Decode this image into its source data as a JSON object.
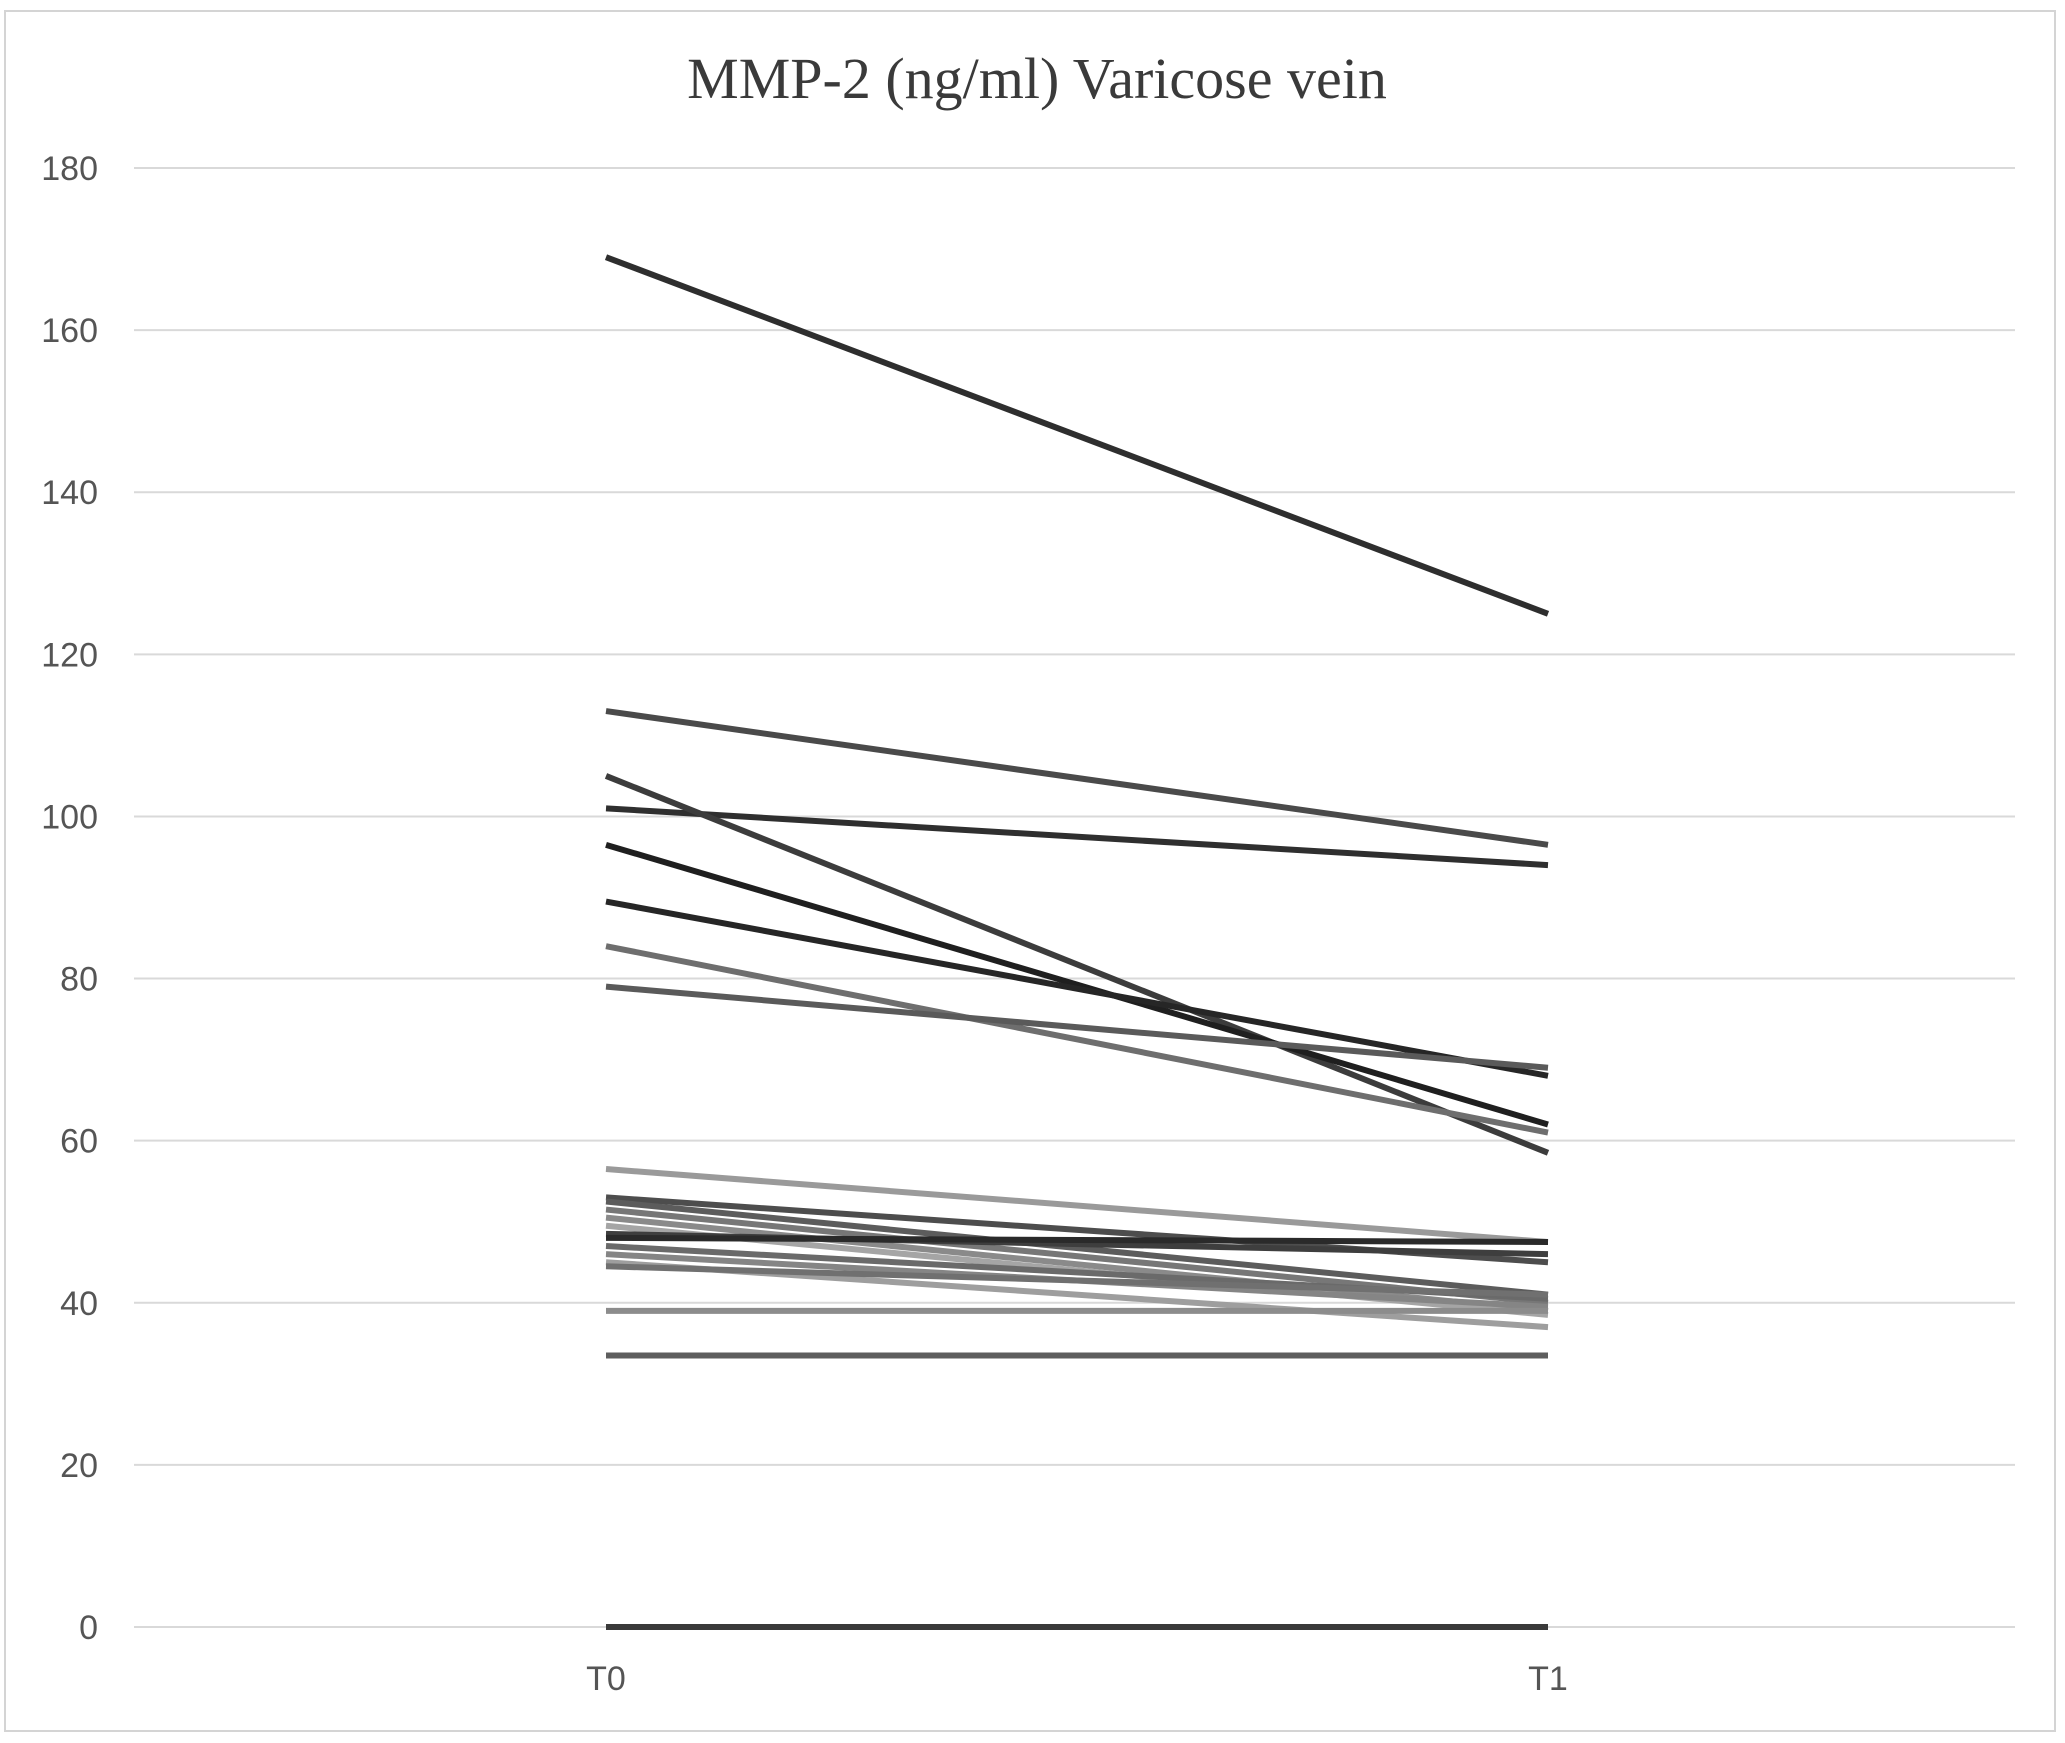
{
  "chart_data": {
    "type": "line",
    "title": "MMP-2 (ng/ml) Varicose vein",
    "xlabel": "",
    "ylabel": "",
    "categories": [
      "T0",
      "T1"
    ],
    "ylim": [
      0,
      180
    ],
    "yticks": [
      0,
      20,
      40,
      60,
      80,
      100,
      120,
      140,
      160,
      180
    ],
    "grid": true,
    "legend": "none",
    "series": [
      {
        "values": [
          169,
          125
        ],
        "color": "#2e2e2e"
      },
      {
        "values": [
          113,
          96.5
        ],
        "color": "#4a4a4a"
      },
      {
        "values": [
          101,
          94
        ],
        "color": "#2f2f2f"
      },
      {
        "values": [
          105,
          58.5
        ],
        "color": "#3c3c3c"
      },
      {
        "values": [
          96.5,
          62
        ],
        "color": "#1f1f1f"
      },
      {
        "values": [
          89.5,
          68
        ],
        "color": "#262626"
      },
      {
        "values": [
          84,
          61
        ],
        "color": "#6e6e6e"
      },
      {
        "values": [
          79,
          69
        ],
        "color": "#5a5a5a"
      },
      {
        "values": [
          56.5,
          47.5
        ],
        "color": "#9a9a9a"
      },
      {
        "values": [
          53,
          45
        ],
        "color": "#4d4d4d"
      },
      {
        "values": [
          52.5,
          41
        ],
        "color": "#5c5c5c"
      },
      {
        "values": [
          51.5,
          40
        ],
        "color": "#777777"
      },
      {
        "values": [
          50.5,
          39
        ],
        "color": "#8a8a8a"
      },
      {
        "values": [
          49.5,
          38.5
        ],
        "color": "#a5a5a5"
      },
      {
        "values": [
          48.5,
          46
        ],
        "color": "#3e3e3e"
      },
      {
        "values": [
          48,
          47.5
        ],
        "color": "#2a2a2a"
      },
      {
        "values": [
          47,
          40.5
        ],
        "color": "#6a6a6a"
      },
      {
        "values": [
          46,
          39.5
        ],
        "color": "#858585"
      },
      {
        "values": [
          45,
          37
        ],
        "color": "#9e9e9e"
      },
      {
        "values": [
          44.5,
          41
        ],
        "color": "#707070"
      },
      {
        "values": [
          39,
          39
        ],
        "color": "#8c8c8c"
      },
      {
        "values": [
          33.5,
          33.5
        ],
        "color": "#5e5e5e"
      },
      {
        "values": [
          0,
          0
        ],
        "color": "#3a3a3a"
      }
    ]
  }
}
